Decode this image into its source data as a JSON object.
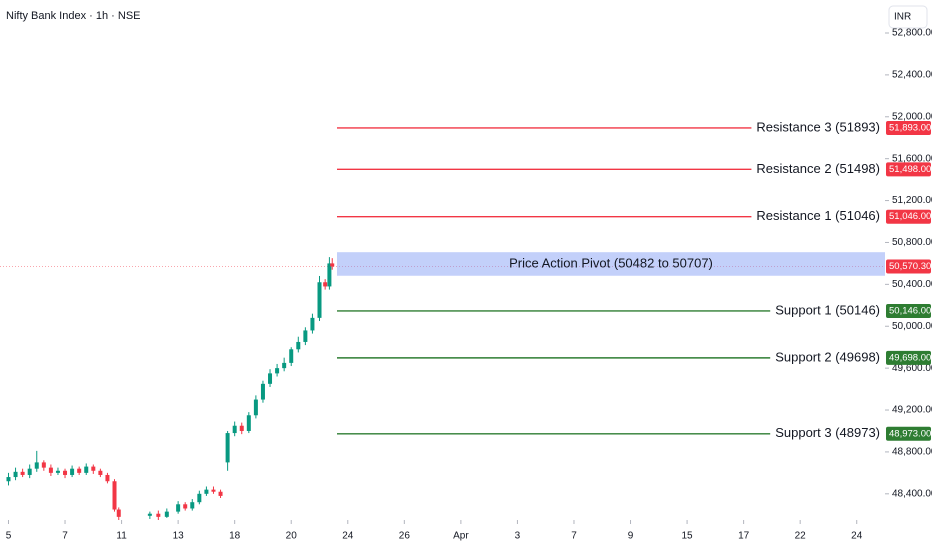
{
  "chart_data": {
    "type": "candlestick",
    "title": "Nifty Bank Index · 1h · NSE",
    "currency": "INR",
    "x": [
      0,
      0.25,
      0.5,
      0.75,
      1,
      1.25,
      1.5,
      1.75,
      2,
      2.25,
      2.5,
      2.75,
      3,
      3.25,
      3.5,
      3.75,
      3.9,
      5,
      5.3,
      5.6,
      6,
      6.25,
      6.5,
      6.75,
      7,
      7.25,
      7.5,
      7.75,
      8,
      8.25,
      8.5,
      8.75,
      9,
      9.25,
      9.5,
      9.75,
      10,
      10.25,
      10.5,
      10.75,
      11,
      11.2,
      11.35,
      11.45
    ],
    "open": [
      48520,
      48560,
      48610,
      48580,
      48640,
      48700,
      48650,
      48600,
      48620,
      48580,
      48640,
      48600,
      48660,
      48620,
      48580,
      48520,
      48250,
      48190,
      48210,
      48180,
      48230,
      48300,
      48260,
      48320,
      48400,
      48440,
      48420,
      48700,
      48980,
      49050,
      49000,
      49150,
      49300,
      49450,
      49550,
      49600,
      49650,
      49780,
      49850,
      49960,
      50080,
      50420,
      50380,
      50600
    ],
    "high": [
      48600,
      48650,
      48640,
      48680,
      48810,
      48720,
      48680,
      48650,
      48640,
      48670,
      48660,
      48690,
      48680,
      48640,
      48600,
      48540,
      48270,
      48230,
      48240,
      48260,
      48330,
      48320,
      48350,
      48430,
      48470,
      48470,
      48440,
      49000,
      49090,
      49080,
      49180,
      49340,
      49480,
      49590,
      49640,
      49700,
      49800,
      49900,
      49990,
      50120,
      50480,
      50450,
      50660,
      50650
    ],
    "low": [
      48480,
      48530,
      48560,
      48550,
      48610,
      48620,
      48570,
      48580,
      48550,
      48560,
      48580,
      48580,
      48590,
      48560,
      48500,
      48230,
      48150,
      48160,
      48150,
      48170,
      48210,
      48240,
      48240,
      48300,
      48380,
      48400,
      48360,
      48620,
      48950,
      48970,
      48980,
      49120,
      49270,
      49420,
      49520,
      49570,
      49620,
      49750,
      49820,
      49930,
      50050,
      50350,
      50350,
      50540
    ],
    "close": [
      48560,
      48610,
      48580,
      48640,
      48700,
      48650,
      48600,
      48620,
      48580,
      48640,
      48600,
      48660,
      48620,
      48580,
      48520,
      48250,
      48180,
      48210,
      48180,
      48230,
      48300,
      48260,
      48320,
      48400,
      48440,
      48420,
      48380,
      48980,
      49050,
      49000,
      49150,
      49300,
      49450,
      49550,
      49600,
      49650,
      49780,
      49850,
      49960,
      50080,
      50420,
      50380,
      50600,
      50570.3
    ],
    "up_color": "#089981",
    "down_color": "#f23645",
    "xlim": [
      -0.3,
      31
    ],
    "xticks": [
      {
        "value": 0,
        "label": "5"
      },
      {
        "value": 2,
        "label": "7"
      },
      {
        "value": 4,
        "label": "11"
      },
      {
        "value": 6,
        "label": "13"
      },
      {
        "value": 8,
        "label": "18"
      },
      {
        "value": 10,
        "label": "20"
      },
      {
        "value": 12,
        "label": "24"
      },
      {
        "value": 14,
        "label": "26"
      },
      {
        "value": 16,
        "label": "Apr"
      },
      {
        "value": 18,
        "label": "3"
      },
      {
        "value": 20,
        "label": "7"
      },
      {
        "value": 22,
        "label": "9"
      },
      {
        "value": 24,
        "label": "15"
      },
      {
        "value": 26,
        "label": "17"
      },
      {
        "value": 28,
        "label": "22"
      },
      {
        "value": 30,
        "label": "24"
      }
    ],
    "ylim": [
      48150,
      53115
    ],
    "yticks": [
      {
        "value": 52800,
        "label": "52,800.00"
      },
      {
        "value": 52400,
        "label": "52,400.00"
      },
      {
        "value": 52000,
        "label": "52,000.00"
      },
      {
        "value": 51600,
        "label": "51,600.00"
      },
      {
        "value": 51200,
        "label": "51,200.00"
      },
      {
        "value": 50800,
        "label": "50,800.00"
      },
      {
        "value": 50400,
        "label": "50,400.00"
      },
      {
        "value": 50000,
        "label": "50,000.00"
      },
      {
        "value": 49600,
        "label": "49,600.00"
      },
      {
        "value": 49200,
        "label": "49,200.00"
      },
      {
        "value": 48800,
        "label": "48,800.00"
      },
      {
        "value": 48400,
        "label": "48,400.00"
      }
    ],
    "levels": [
      {
        "label": "Resistance 3 (51893)",
        "value": 51893,
        "value_label": "51,893.00",
        "color": "#f23645"
      },
      {
        "label": "Resistance 2 (51498)",
        "value": 51498,
        "value_label": "51,498.00",
        "color": "#f23645"
      },
      {
        "label": "Resistance 1 (51046)",
        "value": 51046,
        "value_label": "51,046.00",
        "color": "#f23645"
      },
      {
        "label": "Support 1 (50146)",
        "value": 50146,
        "value_label": "50,146.00",
        "color": "#2e7d32"
      },
      {
        "label": "Support 2 (49698)",
        "value": 49698,
        "value_label": "49,698.00",
        "color": "#2e7d32"
      },
      {
        "label": "Support 3 (48973)",
        "value": 48973,
        "value_label": "48,973.00",
        "color": "#2e7d32"
      }
    ],
    "zone": {
      "label": "Price Action Pivot (50482 to 50707)",
      "low": 50482,
      "high": 50707,
      "color": "#7b96f5"
    },
    "last_price": {
      "value": 50570.3,
      "value_label": "50,570.30",
      "color": "#f23645"
    }
  }
}
